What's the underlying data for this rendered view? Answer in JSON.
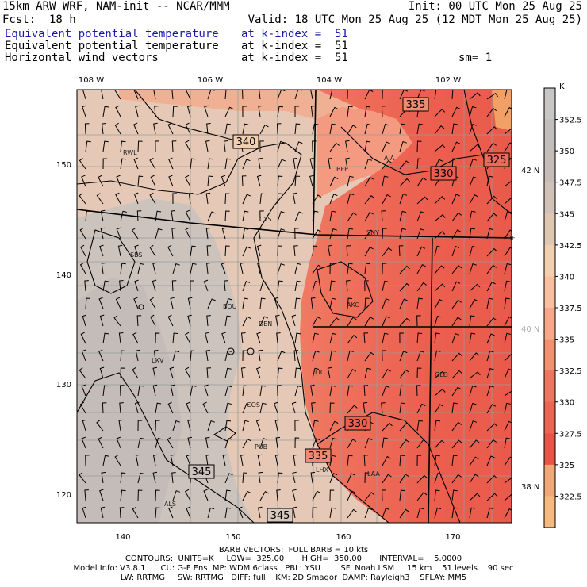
{
  "header": {
    "model": "15km ARW WRF, NAM-init -- NCAR/MMM",
    "init": "Init: 00 UTC Mon 25 Aug 25",
    "fcst_label": "Fcst:",
    "fcst_value": "18 h",
    "valid": "Valid: 18 UTC Mon 25 Aug 25 (12 MDT Mon 25 Aug 25)",
    "lines": [
      {
        "label": "Equivalent potential temperature",
        "level": "at k-index =  51",
        "extra": ""
      },
      {
        "label": "Equivalent potential temperature",
        "level": "at k-index =  51",
        "extra": ""
      },
      {
        "label": "Horizontal wind vectors",
        "level": "at k-index =  51",
        "extra": "sm= 1"
      }
    ]
  },
  "top_axis": [
    "108 W",
    "106 W",
    "104 W",
    "102 W"
  ],
  "left_axis": [
    "150",
    "140",
    "130",
    "120"
  ],
  "bottom_axis": [
    "140",
    "150",
    "160",
    "170"
  ],
  "right_lat": [
    {
      "label": "42 N",
      "color": "#000000"
    },
    {
      "label": "40 N",
      "color": "#aaaaaa"
    },
    {
      "label": "38 N",
      "color": "#000000"
    }
  ],
  "stations": [
    "RWL",
    "BFF",
    "AIA",
    "CYS",
    "SNY",
    "LBF",
    "SBS",
    "BOU",
    "AKO",
    "DEN",
    "LXV",
    "LIC",
    "GLD",
    "COS",
    "PUB",
    "LHX",
    "LAA",
    "ALS"
  ],
  "contour_labels": [
    "335",
    "340",
    "325",
    "330",
    "330",
    "335",
    "345",
    "345"
  ],
  "colorbar": {
    "unit": "K",
    "labels": [
      "352.5",
      "350",
      "347.5",
      "345",
      "342.5",
      "340",
      "337.5",
      "335",
      "332.5",
      "330",
      "327.5",
      "325",
      "322.5"
    ],
    "colors": [
      "#c9c6c6",
      "#c2bebd",
      "#c6bcb8",
      "#d0c2b8",
      "#dec8b2",
      "#f2cfb0",
      "#f8c0a0",
      "#f5a88a",
      "#f29070",
      "#ee7660",
      "#ec6553",
      "#e85548",
      "#f0a878",
      "#f6ba80"
    ]
  },
  "footer": {
    "barb": "BARB VECTORS:  FULL BARB = 10 kts",
    "contours": "CONTOURS:  UNITS=K     LOW=  325.00       HIGH=  350.00       INTERVAL=    5.0000",
    "model1": "Model Info: V3.8.1      CU: G-F Ens  MP: WDM 6class   PBL: YSU        SF: Noah LSM     15 km    51 levels    90 sec",
    "model2": "LW: RRTMG     SW: RRTMG   DIFF: full    KM: 2D Smagor  DAMP: Rayleigh3    SFLAY: MM5"
  }
}
